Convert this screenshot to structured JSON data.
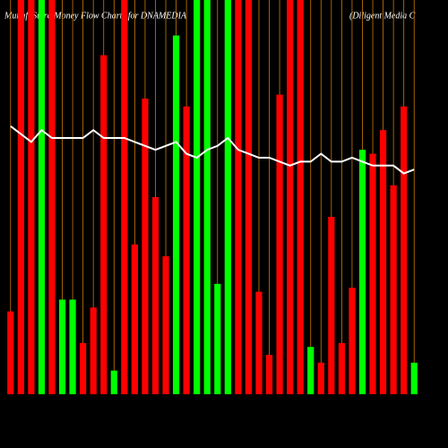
{
  "chart_data": {
    "type": "bar",
    "title": "MunafaSutra Money Flow Charts for DNAMEDIA",
    "subtitle": "(Diligent Media C",
    "categories": [
      null,
      null,
      null,
      null,
      null,
      null,
      null,
      null,
      null,
      null,
      null,
      null,
      null,
      null,
      null,
      null,
      null,
      null,
      null,
      null,
      null,
      null,
      null,
      null,
      null,
      null,
      null,
      null,
      null,
      null,
      null,
      null,
      null,
      null,
      null,
      null,
      null,
      null,
      null,
      null
    ],
    "values": [
      21,
      100,
      100,
      100,
      100,
      24,
      24,
      13,
      22,
      86,
      6,
      100,
      38,
      75,
      50,
      35,
      91,
      73,
      100,
      100,
      28,
      100,
      100,
      100,
      26,
      10,
      76,
      100,
      100,
      12,
      8,
      45,
      13,
      27,
      62,
      61,
      67,
      53,
      73,
      8
    ],
    "colors": [
      "#ff0000",
      "#ff0000",
      "#ff0000",
      "#00ff00",
      "#ff0000",
      "#00ff00",
      "#00ff00",
      "#ff0000",
      "#ff0000",
      "#ff0000",
      "#00ff00",
      "#ff0000",
      "#ff0000",
      "#ff0000",
      "#ff0000",
      "#ff0000",
      "#00ff00",
      "#ff0000",
      "#00ff00",
      "#00ff00",
      "#00ff00",
      "#00ff00",
      "#ff0000",
      "#ff0000",
      "#ff0000",
      "#ff0000",
      "#ff0000",
      "#ff0000",
      "#ff0000",
      "#00ff00",
      "#ff0000",
      "#ff0000",
      "#ff0000",
      "#ff0000",
      "#00ff00",
      "#ff0000",
      "#ff0000",
      "#ff0000",
      "#ff0000",
      "#00ff00"
    ],
    "line": {
      "color": "#ffffff",
      "values": [
        68,
        66,
        64,
        67,
        65,
        65,
        65,
        65,
        67,
        65,
        65,
        65,
        64,
        63,
        62,
        63,
        64,
        61,
        60,
        62,
        63,
        65,
        62,
        61,
        60,
        60,
        59,
        58,
        59,
        59,
        61,
        59,
        59,
        60,
        59,
        58,
        58,
        58,
        56,
        57
      ]
    },
    "grid_color": "#cc7a00",
    "ylim": [
      0,
      100
    ]
  }
}
